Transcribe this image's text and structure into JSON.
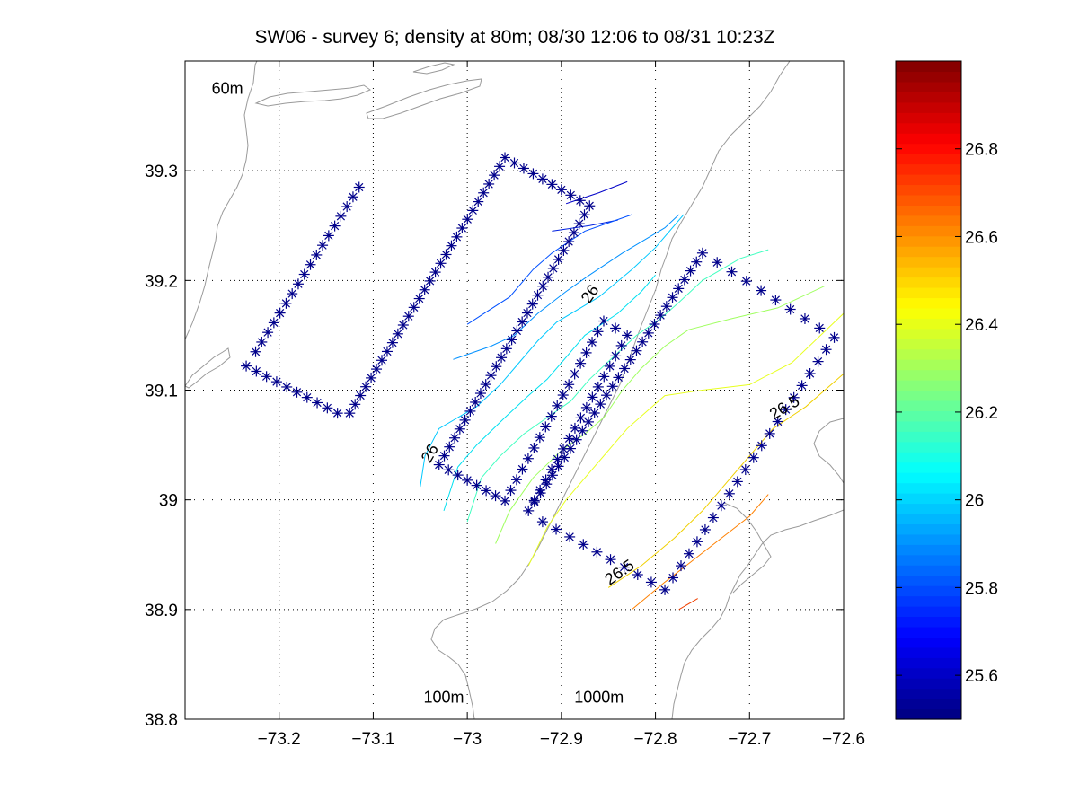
{
  "chart_data": {
    "type": "contour-map",
    "title": "SW06 - survey 6; density at 80m; 08/30 12:06 to 08/31 10:23Z",
    "xlim": [
      -73.3,
      -72.6
    ],
    "ylim": [
      38.8,
      39.4
    ],
    "xticks": [
      -73.2,
      -73.1,
      -73.0,
      -72.9,
      -72.8,
      -72.7,
      -72.6
    ],
    "xtick_labels": [
      "−73.2",
      "−73.1",
      "−73",
      "−72.9",
      "−72.8",
      "−72.7",
      "−72.6"
    ],
    "yticks": [
      38.8,
      38.9,
      39.0,
      39.1,
      39.2,
      39.3
    ],
    "ytick_labels": [
      "38.8",
      "38.9",
      "39",
      "39.1",
      "39.2",
      "39.3"
    ],
    "grid": true,
    "annotations": [
      {
        "text": "60m",
        "x": -73.255,
        "y": 39.37
      },
      {
        "text": "100m",
        "x": -73.025,
        "y": 38.815
      },
      {
        "text": "1000m",
        "x": -72.86,
        "y": 38.815
      }
    ],
    "contour_labels": [
      {
        "text": "26",
        "x": -72.865,
        "y": 39.185,
        "rotate": -55
      },
      {
        "text": "26",
        "x": -73.035,
        "y": 39.04,
        "rotate": -60
      },
      {
        "text": "26.5",
        "x": -72.835,
        "y": 38.93,
        "rotate": -35
      },
      {
        "text": "26.5",
        "x": -72.66,
        "y": 39.08,
        "rotate": -30
      }
    ],
    "colorbar": {
      "colormap": "jet",
      "range": [
        25.5,
        27.0
      ],
      "ticks": [
        25.6,
        25.8,
        26.0,
        26.2,
        26.4,
        26.6,
        26.8
      ],
      "tick_labels": [
        "25.6",
        "25.8",
        "26",
        "26.2",
        "26.4",
        "26.6",
        "26.8"
      ]
    },
    "station_track": {
      "marker": "*",
      "color": "#00008b",
      "legs": [
        {
          "from": [
            -73.115,
            39.285
          ],
          "to": [
            -73.225,
            39.135
          ],
          "n": 18
        },
        {
          "from": [
            -73.225,
            39.135
          ],
          "to": [
            -73.235,
            39.122
          ],
          "n": 2
        },
        {
          "from": [
            -73.235,
            39.122
          ],
          "to": [
            -73.138,
            39.079
          ],
          "n": 10
        },
        {
          "from": [
            -73.138,
            39.079
          ],
          "to": [
            -73.125,
            39.079
          ],
          "n": 2
        },
        {
          "from": [
            -73.125,
            39.079
          ],
          "to": [
            -72.96,
            39.312
          ],
          "n": 30
        },
        {
          "from": [
            -72.96,
            39.312
          ],
          "to": [
            -72.87,
            39.268
          ],
          "n": 10
        },
        {
          "from": [
            -72.87,
            39.268
          ],
          "to": [
            -73.03,
            39.032
          ],
          "n": 30
        },
        {
          "from": [
            -73.03,
            39.032
          ],
          "to": [
            -72.96,
            38.999
          ],
          "n": 8
        },
        {
          "from": [
            -72.96,
            38.999
          ],
          "to": [
            -72.855,
            39.163
          ],
          "n": 18
        },
        {
          "from": [
            -72.855,
            39.163
          ],
          "to": [
            -72.83,
            39.15
          ],
          "n": 3
        },
        {
          "from": [
            -72.83,
            39.15
          ],
          "to": [
            -72.935,
            38.99
          ],
          "n": 18
        },
        {
          "from": [
            -72.935,
            38.99
          ],
          "to": [
            -72.75,
            39.225
          ],
          "n": 30
        },
        {
          "from": [
            -72.75,
            39.225
          ],
          "to": [
            -72.61,
            39.148
          ],
          "n": 10
        },
        {
          "from": [
            -72.61,
            39.148
          ],
          "to": [
            -72.79,
            38.918
          ],
          "n": 22
        },
        {
          "from": [
            -72.79,
            38.918
          ],
          "to": [
            -72.92,
            38.98
          ],
          "n": 10
        }
      ]
    },
    "contours": [
      {
        "level": 25.65,
        "color": "#0000c8",
        "points": [
          [
            -72.895,
            39.27
          ],
          [
            -72.86,
            39.28
          ],
          [
            -72.83,
            39.29
          ]
        ]
      },
      {
        "level": 25.7,
        "color": "#0020e0",
        "points": [
          [
            -72.91,
            39.245
          ],
          [
            -72.87,
            39.25
          ],
          [
            -72.84,
            39.255
          ]
        ]
      },
      {
        "level": 25.8,
        "color": "#0050ff",
        "points": [
          [
            -73.0,
            39.16
          ],
          [
            -72.955,
            39.185
          ],
          [
            -72.93,
            39.21
          ],
          [
            -72.91,
            39.225
          ],
          [
            -72.875,
            39.245
          ],
          [
            -72.825,
            39.26
          ]
        ]
      },
      {
        "level": 25.9,
        "color": "#0090ff",
        "points": [
          [
            -73.015,
            39.128
          ],
          [
            -72.975,
            39.14
          ],
          [
            -72.95,
            39.15
          ],
          [
            -72.925,
            39.17
          ],
          [
            -72.895,
            39.19
          ],
          [
            -72.87,
            39.205
          ],
          [
            -72.835,
            39.225
          ],
          [
            -72.79,
            39.248
          ],
          [
            -72.775,
            39.26
          ]
        ]
      },
      {
        "level": 26.0,
        "color": "#00c8ff",
        "points": [
          [
            -73.05,
            39.012
          ],
          [
            -73.045,
            39.04
          ],
          [
            -73.03,
            39.065
          ],
          [
            -72.99,
            39.085
          ],
          [
            -72.965,
            39.105
          ],
          [
            -72.945,
            39.125
          ],
          [
            -72.925,
            39.145
          ],
          [
            -72.905,
            39.162
          ],
          [
            -72.86,
            39.185
          ],
          [
            -72.825,
            39.21
          ],
          [
            -72.8,
            39.23
          ],
          [
            -72.77,
            39.26
          ]
        ]
      },
      {
        "level": 26.05,
        "color": "#00e0f0",
        "points": [
          [
            -73.025,
            38.99
          ],
          [
            -73.01,
            39.03
          ],
          [
            -72.99,
            39.05
          ],
          [
            -72.96,
            39.075
          ],
          [
            -72.935,
            39.095
          ],
          [
            -72.915,
            39.11
          ],
          [
            -72.9,
            39.125
          ],
          [
            -72.875,
            39.15
          ],
          [
            -72.84,
            39.17
          ],
          [
            -72.815,
            39.19
          ],
          [
            -72.8,
            39.205
          ]
        ]
      },
      {
        "level": 26.15,
        "color": "#40ffc0",
        "points": [
          [
            -73.0,
            38.98
          ],
          [
            -72.985,
            39.02
          ],
          [
            -72.965,
            39.04
          ],
          [
            -72.94,
            39.06
          ],
          [
            -72.915,
            39.075
          ],
          [
            -72.89,
            39.09
          ],
          [
            -72.87,
            39.11
          ],
          [
            -72.845,
            39.13
          ],
          [
            -72.82,
            39.15
          ],
          [
            -72.795,
            39.165
          ],
          [
            -72.775,
            39.18
          ],
          [
            -72.75,
            39.2
          ],
          [
            -72.71,
            39.22
          ],
          [
            -72.68,
            39.228
          ]
        ]
      },
      {
        "level": 26.3,
        "color": "#a0ff60",
        "points": [
          [
            -72.97,
            38.96
          ],
          [
            -72.955,
            38.99
          ],
          [
            -72.93,
            39.02
          ],
          [
            -72.9,
            39.045
          ],
          [
            -72.875,
            39.06
          ],
          [
            -72.855,
            39.075
          ],
          [
            -72.835,
            39.1
          ],
          [
            -72.815,
            39.12
          ],
          [
            -72.79,
            39.14
          ],
          [
            -72.765,
            39.155
          ],
          [
            -72.72,
            39.165
          ],
          [
            -72.67,
            39.175
          ],
          [
            -72.62,
            39.195
          ]
        ]
      },
      {
        "level": 26.4,
        "color": "#e8ff20",
        "points": [
          [
            -72.935,
            38.94
          ],
          [
            -72.915,
            38.975
          ],
          [
            -72.895,
            39.0
          ],
          [
            -72.87,
            39.025
          ],
          [
            -72.85,
            39.045
          ],
          [
            -72.83,
            39.065
          ],
          [
            -72.81,
            39.08
          ],
          [
            -72.79,
            39.095
          ],
          [
            -72.75,
            39.1
          ],
          [
            -72.7,
            39.105
          ],
          [
            -72.655,
            39.125
          ],
          [
            -72.6,
            39.17
          ]
        ]
      },
      {
        "level": 26.5,
        "color": "#f0d000",
        "points": [
          [
            -72.85,
            38.92
          ],
          [
            -72.815,
            38.94
          ],
          [
            -72.78,
            38.965
          ],
          [
            -72.75,
            38.99
          ],
          [
            -72.72,
            39.02
          ],
          [
            -72.695,
            39.045
          ],
          [
            -72.675,
            39.065
          ],
          [
            -72.64,
            39.085
          ],
          [
            -72.6,
            39.115
          ]
        ]
      },
      {
        "level": 26.6,
        "color": "#ff8000",
        "points": [
          [
            -72.825,
            38.9
          ],
          [
            -72.79,
            38.925
          ],
          [
            -72.76,
            38.945
          ],
          [
            -72.73,
            38.965
          ],
          [
            -72.7,
            38.985
          ],
          [
            -72.68,
            39.005
          ]
        ]
      },
      {
        "level": 26.65,
        "color": "#f04000",
        "points": [
          [
            -72.775,
            38.9
          ],
          [
            -72.755,
            38.91
          ]
        ]
      }
    ]
  }
}
